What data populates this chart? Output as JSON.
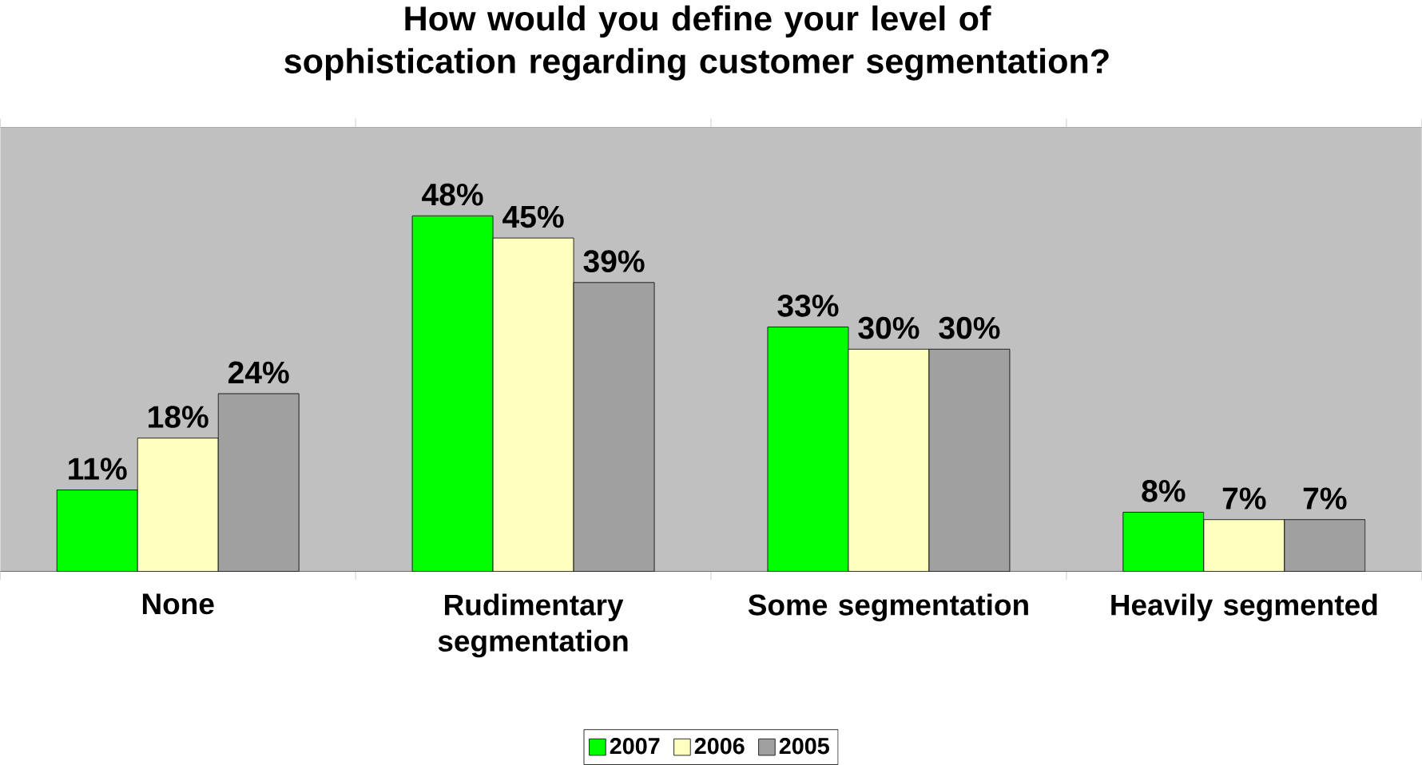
{
  "chart_data": {
    "type": "bar",
    "title": "How would you define your level of sophistication regarding customer segmentation?",
    "categories": [
      "None",
      "Rudimentary segmentation",
      "Some segmentation",
      "Heavily segmented"
    ],
    "series": [
      {
        "name": "2007",
        "color": "#00ff00",
        "values": [
          11,
          48,
          33,
          8
        ],
        "value_labels": [
          "11%",
          "48%",
          "33%",
          "8%"
        ]
      },
      {
        "name": "2006",
        "color": "#ffffc0",
        "values": [
          18,
          45,
          30,
          7
        ],
        "value_labels": [
          "18%",
          "45%",
          "30%",
          "7%"
        ]
      },
      {
        "name": "2005",
        "color": "#a0a0a0",
        "values": [
          24,
          39,
          30,
          7
        ],
        "value_labels": [
          "24%",
          "39%",
          "30%",
          "7%"
        ]
      }
    ],
    "legend": "bottom"
  }
}
